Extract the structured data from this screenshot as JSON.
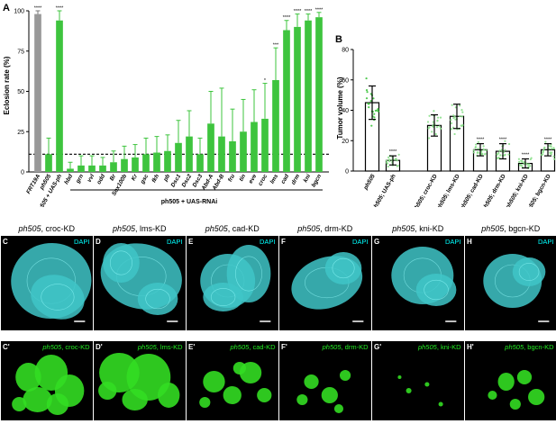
{
  "panel_a": {
    "letter": "A",
    "ylabel": "Eclosion rate (%)",
    "group_label": "ph505 + UAS-RNAi",
    "chart_data": {
      "type": "bar",
      "ylabel": "Eclosion rate (%)",
      "ylim": [
        0,
        100
      ],
      "yticks": [
        "0",
        "25",
        "50",
        "75",
        "100"
      ],
      "reference_line": 11,
      "categories": [
        "FRT19A",
        "ph505",
        "ph505 + UAS-ph",
        "hbd",
        "grn",
        "vvl",
        "odd",
        "Br",
        "Sox100b",
        "Kr",
        "gsc",
        "fkh",
        "pb",
        "Dsc1",
        "Dsc2",
        "Dsc3",
        "Abd-A",
        "Abd-B",
        "fru",
        "tin",
        "eve",
        "croc",
        "lms",
        "cad",
        "drm",
        "kni",
        "bgcn"
      ],
      "values": [
        98,
        11,
        94,
        2,
        4,
        4,
        4,
        6,
        8,
        9,
        11,
        12,
        13,
        18,
        22,
        11,
        30,
        22,
        19,
        25,
        31,
        33,
        57,
        88,
        90,
        94,
        96
      ],
      "errors": [
        2,
        10,
        8,
        4,
        6,
        6,
        5,
        7,
        8,
        8,
        10,
        10,
        10,
        14,
        16,
        10,
        20,
        30,
        20,
        20,
        20,
        22,
        20,
        6,
        8,
        4,
        3
      ],
      "significance": [
        "****",
        "",
        "****",
        "",
        "",
        "",
        "",
        "",
        "",
        "",
        "",
        "",
        "",
        "",
        "",
        "",
        "",
        "",
        "",
        "",
        "",
        "*",
        "***",
        "****",
        "****",
        "****",
        "****"
      ]
    }
  },
  "panel_b": {
    "letter": "B",
    "ylabel": "Tumor volume (%)",
    "chart_data": {
      "type": "bar",
      "ylabel": "Tumor volume (%)",
      "ylim": [
        0,
        80
      ],
      "yticks": [
        "0",
        "20",
        "40",
        "60",
        "80"
      ],
      "categories": [
        {
          "gene": "ph505",
          "suffix": ""
        },
        {
          "gene": "ph505",
          "suffix": "; UAS-ph"
        },
        {
          "gene": "ph505",
          "suffix": "; croc-KD"
        },
        {
          "gene": "ph505",
          "suffix": "; lms-KD"
        },
        {
          "gene": "ph505",
          "suffix": "; cad-KD"
        },
        {
          "gene": "ph505",
          "suffix": "; drm-KD"
        },
        {
          "gene": "ph505",
          "suffix": "; kni-KD"
        },
        {
          "gene": "ph505",
          "suffix": "; bgcn-KD"
        }
      ],
      "values": [
        45,
        7,
        30,
        36,
        14,
        13,
        5,
        14
      ],
      "errors": [
        11,
        3,
        7,
        8,
        4,
        5,
        3,
        4
      ],
      "significance": [
        "",
        "****",
        "",
        "",
        "****",
        "****",
        "****",
        "****"
      ]
    }
  },
  "micrographs": [
    {
      "letter": "C",
      "gene": "ph505",
      "title": ", croc-KD",
      "prime": "C'",
      "dapi": "DAPI"
    },
    {
      "letter": "D",
      "gene": "ph505",
      "title": ", lms-KD",
      "prime": "D'",
      "dapi": "DAPI"
    },
    {
      "letter": "E",
      "gene": "ph505",
      "title": ", cad-KD",
      "prime": "E'",
      "dapi": "DAPI"
    },
    {
      "letter": "F",
      "gene": "ph505",
      "title": ", drm-KD",
      "prime": "F'",
      "dapi": "DAPI"
    },
    {
      "letter": "G",
      "gene": "ph505",
      "title": ", kni-KD",
      "prime": "G'",
      "dapi": "DAPI"
    },
    {
      "letter": "H",
      "gene": "ph505",
      "title": ", bgcn-KD",
      "prime": "H'",
      "dapi": "DAPI"
    }
  ],
  "colors": {
    "grey_bar": "#999999",
    "green_bar": "#3ec43e",
    "green_light": "#8be08b",
    "cyan_tissue": "#3fc6c8",
    "gfp_green": "#33dd22",
    "dapi_label": "#00ffff",
    "gfp_label": "#22ee22"
  }
}
